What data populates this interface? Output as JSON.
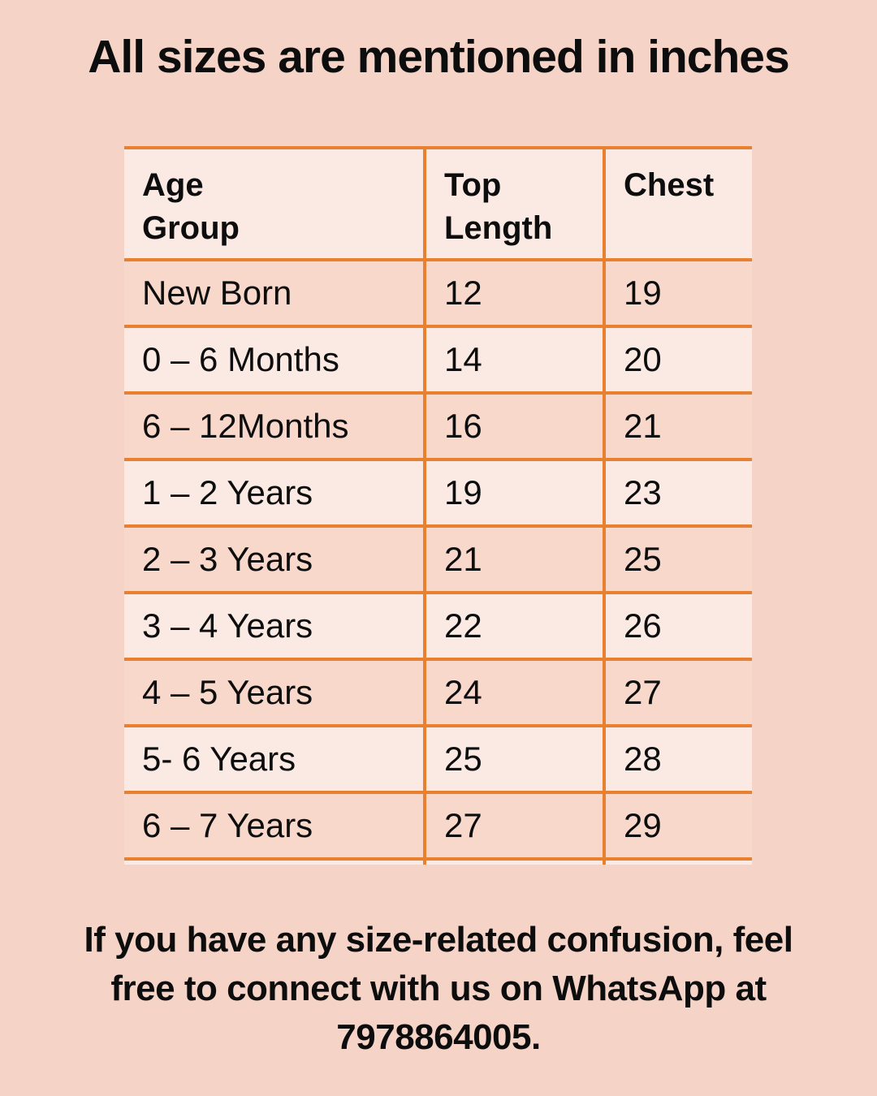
{
  "title": "All sizes are mentioned in inches",
  "chart_data": {
    "type": "table",
    "title": "All sizes are mentioned in inches",
    "columns": [
      "Age Group",
      "Top Length",
      "Chest"
    ],
    "rows": [
      [
        "New Born",
        12,
        19
      ],
      [
        "0 – 6 Months",
        14,
        20
      ],
      [
        "6 – 12Months",
        16,
        21
      ],
      [
        "1 – 2 Years",
        19,
        23
      ],
      [
        "2 – 3 Years",
        21,
        25
      ],
      [
        "3 – 4 Years",
        22,
        26
      ],
      [
        "4 – 5 Years",
        24,
        27
      ],
      [
        "5- 6 Years",
        25,
        28
      ],
      [
        "6 – 7 Years",
        27,
        29
      ]
    ],
    "units": "inches",
    "note": "If you have any size-related confusion, feel free to connect with us on WhatsApp at 7978864005."
  },
  "footer": {
    "lines": [
      "If you have any size-related confusion, feel",
      "free to connect with us on WhatsApp at",
      "7978864005."
    ]
  },
  "colors": {
    "background": "#F5D4C7",
    "row_dark": "#F8D8CB",
    "row_light": "#FBEAE3",
    "border": "#E8802F",
    "text": "#0D0D0D"
  }
}
